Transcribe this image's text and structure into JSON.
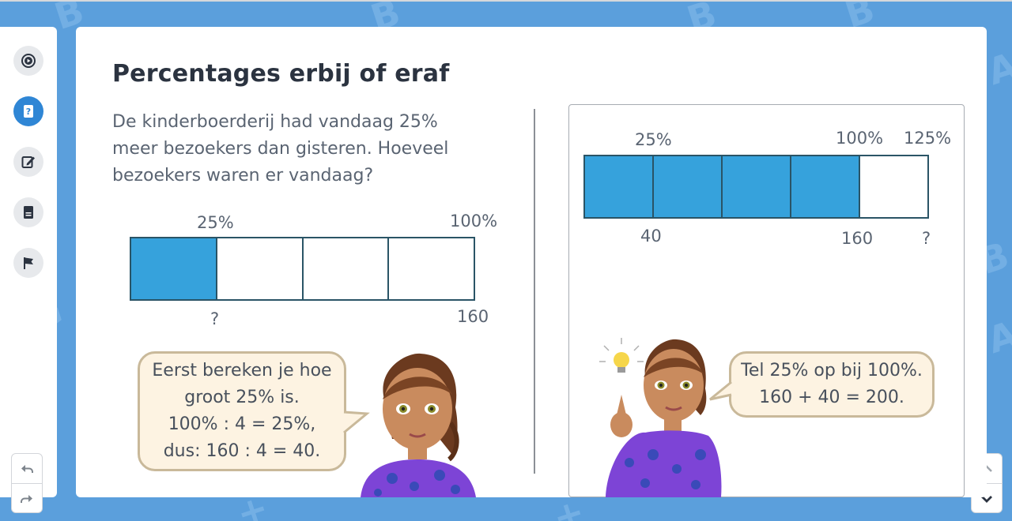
{
  "title": "Percentages erbij of eraf",
  "question": "De kinderboerderij had vandaag 25% meer bezoekers dan gisteren. Hoeveel bezoekers waren er vandaag?",
  "sidebar": {
    "items": [
      {
        "icon": "play-circle-icon",
        "active": false
      },
      {
        "icon": "question-book-icon",
        "active": true
      },
      {
        "icon": "edit-icon",
        "active": false
      },
      {
        "icon": "book-icon",
        "active": false
      },
      {
        "icon": "flag-icon",
        "active": false
      }
    ]
  },
  "left_model": {
    "top_left_label": "25%",
    "top_right_label": "100%",
    "bottom_left_label": "?",
    "bottom_right_label": "160",
    "segments": 4,
    "filled_segments": 1
  },
  "left_bubble": {
    "lines": [
      "Eerst bereken je hoe",
      "groot 25% is.",
      "100% : 4 = 25%,",
      "dus: 160 : 4 = 40."
    ]
  },
  "right_model": {
    "top_labels": [
      "25%",
      "100%",
      "125%"
    ],
    "bottom_labels": [
      "40",
      "160",
      "?"
    ],
    "segments": 5,
    "filled_segments": 4
  },
  "right_bubble": {
    "lines": [
      "Tel 25% op bij 100%.",
      "160 + 40 = 200."
    ]
  },
  "colors": {
    "background": "#5b9fdc",
    "accent": "#2f86d5",
    "bar_fill": "#36a2dc",
    "bubble_fill": "#fdf3e2"
  }
}
